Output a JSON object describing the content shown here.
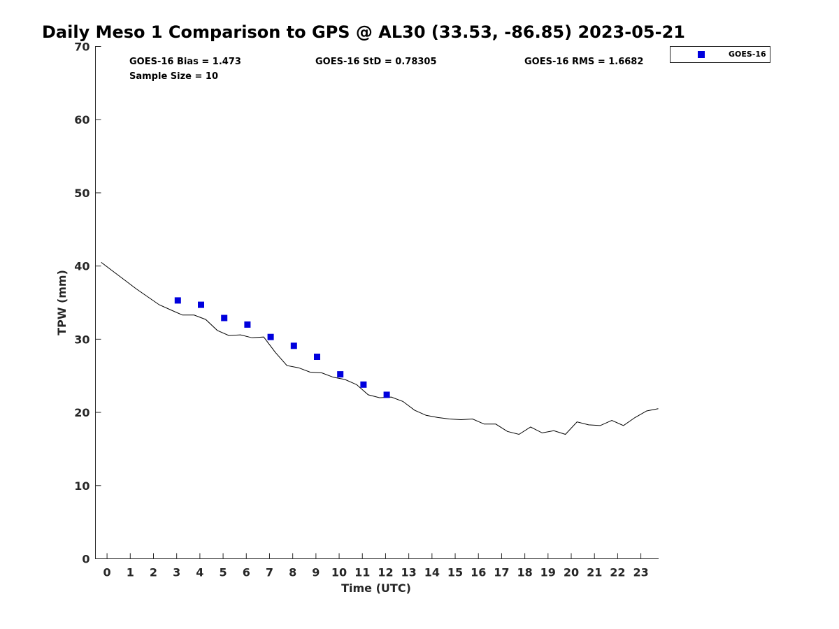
{
  "chart_data": {
    "type": "scatter",
    "title": "Daily Meso 1 Comparison to GPS @ AL30 (33.53, -86.85) 2023-05-21",
    "xlabel": "Time (UTC)",
    "ylabel": "TPW (mm)",
    "xlim": [
      -0.5,
      23.75
    ],
    "ylim": [
      0,
      70
    ],
    "x_ticks": [
      0,
      1,
      2,
      3,
      4,
      5,
      6,
      7,
      8,
      9,
      10,
      11,
      12,
      13,
      14,
      15,
      16,
      17,
      18,
      19,
      20,
      21,
      22,
      23
    ],
    "y_ticks": [
      0,
      10,
      20,
      30,
      40,
      50,
      60,
      70
    ],
    "grid": false,
    "legend_position": "top-right, outside plot",
    "stats": {
      "bias": "GOES-16 Bias = 1.473",
      "std": "GOES-16 StD = 0.78305",
      "rms": "GOES-16 RMS = 1.6682",
      "sample_size": "Sample Size = 10"
    },
    "series": [
      {
        "name": "GOES-16",
        "kind": "scatter",
        "marker": "square",
        "color": "#0000dd",
        "x": [
          3.05,
          4.05,
          5.05,
          6.05,
          7.05,
          8.05,
          9.05,
          10.05,
          11.05,
          12.05
        ],
        "y": [
          35.3,
          34.7,
          32.9,
          32.0,
          30.3,
          29.1,
          27.6,
          25.2,
          23.8,
          22.4
        ]
      },
      {
        "kind": "line",
        "color": "#000000",
        "x": [
          -0.25,
          0.25,
          0.75,
          1.25,
          1.75,
          2.25,
          2.75,
          3.25,
          3.75,
          4.25,
          4.75,
          5.25,
          5.75,
          6.25,
          6.75,
          7.25,
          7.75,
          8.25,
          8.75,
          9.25,
          9.75,
          10.25,
          10.75,
          11.25,
          11.75,
          12.25,
          12.75,
          13.25,
          13.75,
          14.25,
          14.75,
          15.25,
          15.75,
          16.25,
          16.75,
          17.25,
          17.75,
          18.25,
          18.75,
          19.25,
          19.75,
          20.25,
          20.75,
          21.25,
          21.75,
          22.25,
          22.75,
          23.25,
          23.75
        ],
        "y": [
          40.5,
          39.3,
          38.1,
          36.9,
          35.8,
          34.7,
          34.0,
          33.3,
          33.3,
          32.7,
          31.2,
          30.5,
          30.6,
          30.2,
          30.3,
          28.2,
          26.4,
          26.1,
          25.5,
          25.4,
          24.8,
          24.5,
          23.8,
          22.4,
          22.0,
          22.1,
          21.5,
          20.3,
          19.6,
          19.3,
          19.1,
          19.0,
          19.1,
          18.4,
          18.4,
          17.4,
          17.0,
          18.0,
          17.2,
          17.5,
          17.0,
          18.7,
          18.3,
          18.2,
          18.9,
          18.2,
          19.3,
          20.2,
          20.5
        ]
      }
    ]
  }
}
